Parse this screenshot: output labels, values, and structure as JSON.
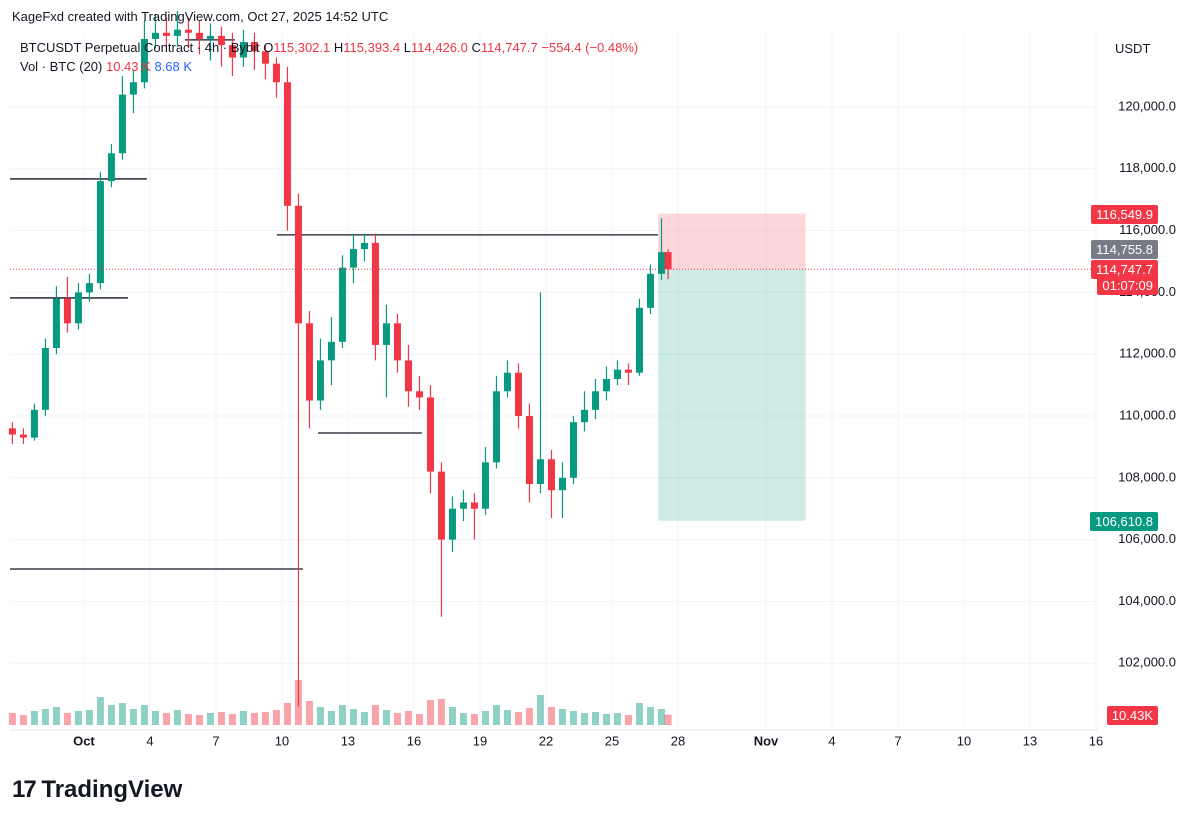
{
  "header": {
    "attribution": "KageFxd created with TradingView.com, Oct 27, 2025 14:52 UTC"
  },
  "footer": {
    "brand": "TradingView"
  },
  "chart_data": {
    "type": "candlestick",
    "symbol": "BTCUSDT Perpetual Contract · 4h · Bybit",
    "ohlc_keys": [
      "O",
      "H",
      "L",
      "C"
    ],
    "ohlc_labels": {
      "open": "115,302.1",
      "high": "115,393.4",
      "low": "114,426.0",
      "close": "114,747.7"
    },
    "change_label": "−554.4 (−0.48%)",
    "currency": "USDT",
    "countdown": "01:07:09",
    "up_color": "#089981",
    "down_color": "#f23645",
    "xlim": [
      -3.36,
      46.09
    ],
    "ylim": [
      99840,
      122490
    ],
    "grid": true,
    "xticks": [
      {
        "value": 0,
        "label": "Oct"
      },
      {
        "value": 3,
        "label": "4"
      },
      {
        "value": 6,
        "label": "7"
      },
      {
        "value": 9,
        "label": "10"
      },
      {
        "value": 12,
        "label": "13"
      },
      {
        "value": 15,
        "label": "16"
      },
      {
        "value": 18,
        "label": "19"
      },
      {
        "value": 21,
        "label": "22"
      },
      {
        "value": 24,
        "label": "25"
      },
      {
        "value": 27,
        "label": "28"
      },
      {
        "value": 31,
        "label": "Nov"
      },
      {
        "value": 34,
        "label": "4"
      },
      {
        "value": 37,
        "label": "7"
      },
      {
        "value": 40,
        "label": "10"
      },
      {
        "value": 43,
        "label": "13"
      },
      {
        "value": 46,
        "label": "16"
      }
    ],
    "yticks": [
      {
        "value": 102000,
        "label": "102,000.0"
      },
      {
        "value": 104000,
        "label": "104,000.0"
      },
      {
        "value": 106000,
        "label": "106,000.0"
      },
      {
        "value": 108000,
        "label": "108,000.0"
      },
      {
        "value": 110000,
        "label": "110,000.0"
      },
      {
        "value": 112000,
        "label": "112,000.0"
      },
      {
        "value": 114000,
        "label": "114,000.0"
      },
      {
        "value": 116000,
        "label": "116,000.0"
      },
      {
        "value": 118000,
        "label": "118,000.0"
      },
      {
        "value": 120000,
        "label": "120,000.0"
      }
    ],
    "candles": {
      "x": [
        -3.25,
        -2.75,
        -2.25,
        -1.75,
        -1.25,
        -0.75,
        -0.25,
        0.25,
        0.75,
        1.25,
        1.75,
        2.25,
        2.75,
        3.25,
        3.75,
        4.25,
        4.75,
        5.25,
        5.75,
        6.25,
        6.75,
        7.25,
        7.75,
        8.25,
        8.75,
        9.25,
        9.75,
        10.25,
        10.75,
        11.25,
        11.75,
        12.25,
        12.75,
        13.25,
        13.75,
        14.25,
        14.75,
        15.25,
        15.75,
        16.25,
        16.75,
        17.25,
        17.75,
        18.25,
        18.75,
        19.25,
        19.75,
        20.25,
        20.75,
        21.25,
        21.75,
        22.25,
        22.75,
        23.25,
        23.75,
        24.25,
        24.75,
        25.25,
        25.75,
        26.25,
        26.55
      ],
      "open": [
        109600,
        109400,
        109300,
        110200,
        112200,
        113800,
        113000,
        114000,
        114300,
        117600,
        118500,
        120400,
        120800,
        122200,
        122400,
        122300,
        122500,
        122400,
        122200,
        122300,
        122000,
        121600,
        122100,
        121800,
        121400,
        120800,
        116800,
        113000,
        110500,
        111800,
        112400,
        114800,
        115400,
        115600,
        112300,
        113000,
        111800,
        110800,
        110600,
        108200,
        106000,
        107000,
        107200,
        107000,
        108500,
        110800,
        111400,
        110000,
        107800,
        108600,
        107600,
        108000,
        109800,
        110200,
        110800,
        111200,
        111500,
        111400,
        113500,
        114600,
        115302.1
      ],
      "high": [
        109800,
        109600,
        110400,
        112500,
        114200,
        114500,
        114300,
        114600,
        117900,
        118800,
        121000,
        121200,
        122800,
        123000,
        122900,
        123100,
        122900,
        122800,
        122700,
        122600,
        122400,
        122500,
        122400,
        122000,
        121600,
        121300,
        117200,
        113400,
        112500,
        113200,
        115200,
        115900,
        115900,
        115900,
        113600,
        113300,
        112300,
        111300,
        111000,
        108500,
        107400,
        107600,
        107500,
        109000,
        111300,
        111800,
        111700,
        110400,
        114000,
        108900,
        108500,
        110000,
        110800,
        111200,
        111600,
        111800,
        111700,
        113800,
        114900,
        116400,
        115393.4
      ],
      "low": [
        109100,
        109100,
        109200,
        110000,
        112000,
        112700,
        112800,
        113700,
        114100,
        117400,
        118300,
        119800,
        120600,
        121900,
        121800,
        122000,
        121900,
        121700,
        121500,
        121300,
        121000,
        121300,
        121200,
        120900,
        120300,
        116000,
        100600,
        109600,
        110200,
        111000,
        112200,
        114300,
        115000,
        111800,
        110600,
        111400,
        110300,
        110200,
        107500,
        103500,
        105600,
        106600,
        106000,
        106800,
        108300,
        110600,
        109600,
        107200,
        107500,
        106700,
        106700,
        107800,
        109500,
        109900,
        110500,
        111000,
        111000,
        111300,
        113300,
        114400,
        114426.0
      ],
      "close": [
        109400,
        109300,
        110200,
        112200,
        113800,
        113000,
        114000,
        114300,
        117600,
        118500,
        120400,
        120800,
        122200,
        122400,
        122300,
        122500,
        122400,
        122200,
        122300,
        122000,
        121600,
        122100,
        121800,
        121400,
        120800,
        116800,
        113000,
        110500,
        111800,
        112400,
        114800,
        115400,
        115600,
        112300,
        113000,
        111800,
        110800,
        110600,
        108200,
        106000,
        107000,
        107200,
        107000,
        108500,
        110800,
        111400,
        110000,
        107800,
        108600,
        107600,
        108000,
        109800,
        110200,
        110800,
        111200,
        111500,
        111400,
        113500,
        114600,
        115300,
        114747.7
      ]
    },
    "volume": {
      "name": "Vol · BTC (20)",
      "last_label": "10.43 K",
      "ma_label": "8.68 K",
      "axis_label": "10.43K",
      "ylim": [
        0,
        100
      ],
      "values": [
        12,
        10,
        14,
        16,
        18,
        12,
        14,
        15,
        28,
        20,
        22,
        16,
        20,
        14,
        12,
        15,
        11,
        10,
        12,
        13,
        11,
        14,
        12,
        13,
        15,
        22,
        45,
        24,
        18,
        14,
        20,
        16,
        13,
        20,
        15,
        12,
        14,
        11,
        25,
        26,
        18,
        12,
        11,
        14,
        20,
        15,
        13,
        17,
        30,
        18,
        16,
        14,
        12,
        13,
        11,
        12,
        10,
        22,
        18,
        16,
        10.43
      ]
    },
    "levels": [
      {
        "value": 117670,
        "x": [
          -3.36,
          2.86
        ]
      },
      {
        "value": 113820,
        "x": [
          -3.36,
          2.0
        ]
      },
      {
        "value": 122170,
        "x": [
          4.59,
          6.86
        ]
      },
      {
        "value": 115860,
        "x": [
          8.77,
          26.09
        ]
      },
      {
        "value": 109450,
        "x": [
          10.64,
          15.36
        ]
      },
      {
        "value": 105050,
        "x": [
          -3.36,
          9.95
        ]
      }
    ],
    "position": {
      "x": [
        26.1,
        32.8
      ],
      "entry": 114750,
      "stop": {
        "value": 116549.9,
        "label": "116,549.9"
      },
      "target": {
        "value": 106610.8,
        "label": "106,610.8"
      }
    },
    "mark_price": {
      "value": 114755.8,
      "label": "114,755.8"
    }
  }
}
